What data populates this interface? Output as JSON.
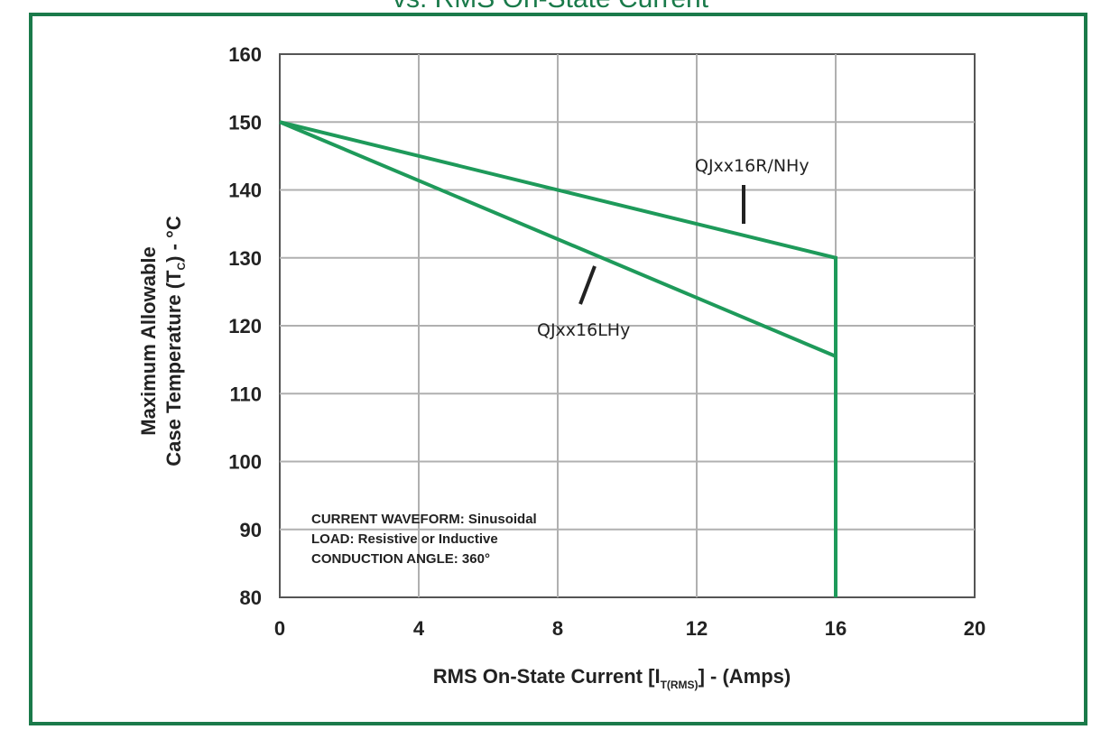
{
  "chart_data": {
    "type": "line",
    "title": "vs. RMS On-State Current",
    "xlabel": {
      "main": "RMS On-State  Current [I",
      "sub": "T(RMS)",
      "after": "] - (Amps)"
    },
    "ylabel": {
      "line1": "Maximum Allowable",
      "line2_main": "Case Temperature (T",
      "line2_sub": "C",
      "line2_after": ") - °C"
    },
    "xlim": [
      0,
      20
    ],
    "ylim": [
      80,
      160
    ],
    "xticks": [
      0,
      4,
      8,
      12,
      16,
      20
    ],
    "yticks": [
      80,
      90,
      100,
      110,
      120,
      130,
      140,
      150,
      160
    ],
    "grid": true,
    "series": [
      {
        "name": "QJxx16R/NHy",
        "x": [
          0,
          16,
          16
        ],
        "y": [
          150,
          130,
          80
        ]
      },
      {
        "name": "QJxx16LHy",
        "x": [
          0,
          16,
          16
        ],
        "y": [
          150,
          115.5,
          80
        ]
      }
    ],
    "annotations": [
      "CURRENT WAVEFORM: Sinusoidal",
      "LOAD: Resistive or Inductive",
      "CONDUCTION ANGLE: 360°"
    ],
    "colors": {
      "line": "#1e9a5a",
      "frame": "#1a7a4a",
      "grid": "#b0b0b0"
    }
  }
}
